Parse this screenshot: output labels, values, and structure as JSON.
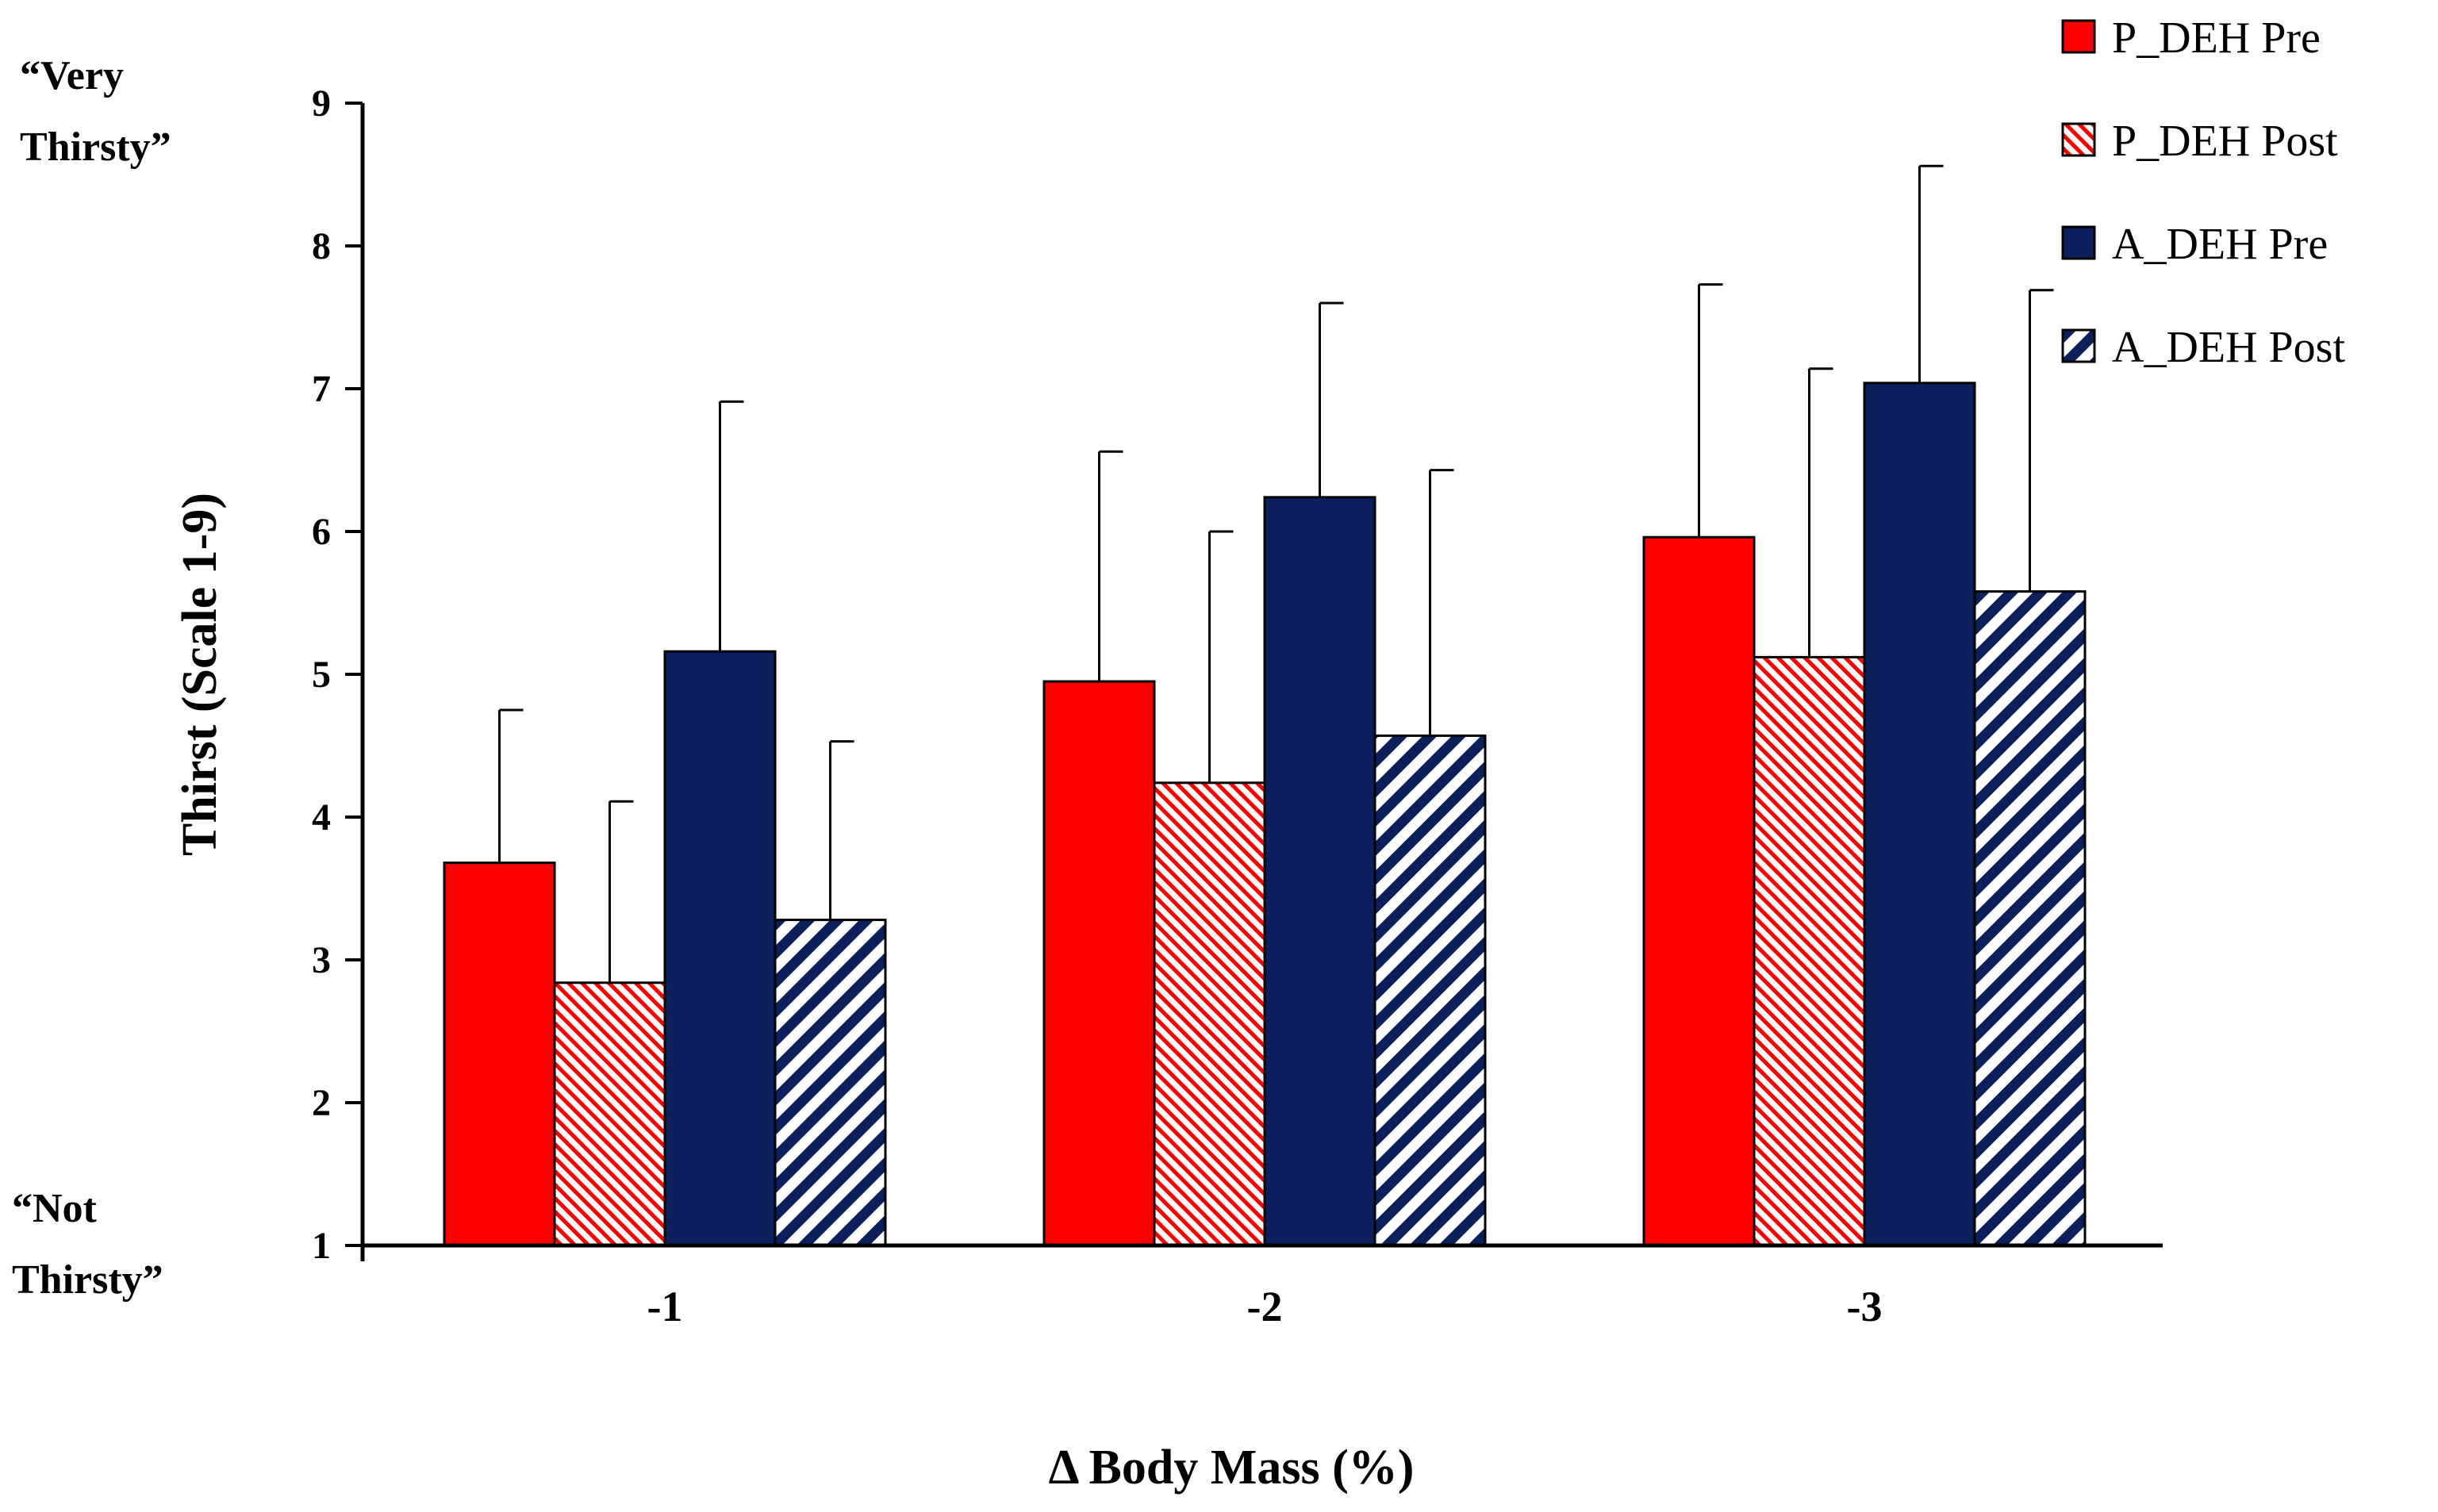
{
  "chart_data": {
    "type": "bar",
    "title": "",
    "xlabel": "Δ Body Mass (%)",
    "ylabel": "Thirst (Scale 1-9)",
    "ylim": [
      1,
      9
    ],
    "yticks": [
      1,
      2,
      3,
      4,
      5,
      6,
      7,
      8,
      9
    ],
    "categories": [
      "-1",
      "-2",
      "-3"
    ],
    "series": [
      {
        "name": "P_DEH Pre",
        "color": "#ff0000",
        "pattern": "solid",
        "values": [
          3.68,
          4.95,
          5.96
        ],
        "errors": [
          1.07,
          1.61,
          1.77
        ]
      },
      {
        "name": "P_DEH Post",
        "color": "#ff0000",
        "pattern": "hatch",
        "values": [
          2.84,
          4.24,
          5.12
        ],
        "errors": [
          1.27,
          1.76,
          2.02
        ]
      },
      {
        "name": "A_DEH Pre",
        "color": "#0a1f5c",
        "pattern": "solid",
        "values": [
          5.16,
          6.24,
          7.04
        ],
        "errors": [
          1.75,
          1.36,
          1.52
        ]
      },
      {
        "name": "A_DEH Post",
        "color": "#0a1f5c",
        "pattern": "hatch",
        "values": [
          3.28,
          4.57,
          5.58
        ],
        "errors": [
          1.25,
          1.86,
          2.11
        ]
      }
    ],
    "annotations": {
      "top": [
        "“Very",
        "Thirsty”"
      ],
      "bottom": [
        "“Not",
        "Thirsty”"
      ]
    },
    "legend_position": "top-right",
    "grid": false
  }
}
